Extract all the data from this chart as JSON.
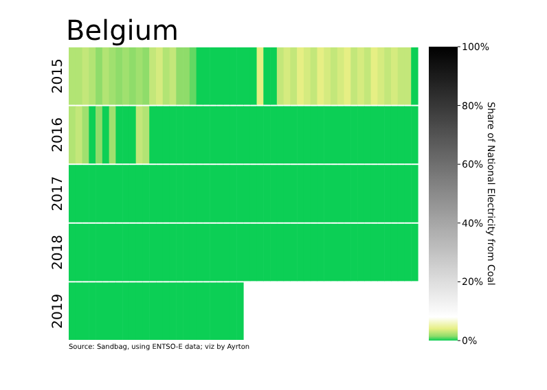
{
  "chart_data": {
    "type": "heatmap",
    "title": "Belgium",
    "categories": [
      null,
      null,
      null,
      null,
      null,
      null,
      null,
      null,
      null,
      null,
      null,
      null,
      null,
      null,
      null,
      null,
      null,
      null,
      null,
      null,
      null,
      null,
      null,
      null,
      null,
      null,
      null,
      null,
      null,
      null,
      null,
      null,
      null,
      null,
      null,
      null,
      null,
      null,
      null,
      null,
      null,
      null,
      null,
      null,
      null,
      null,
      null,
      null,
      null,
      null,
      null,
      null
    ],
    "y_categories": [
      "2015",
      "2016",
      "2017",
      "2018",
      "2019"
    ],
    "cells": [
      [
        2.5,
        2.5,
        3,
        2.5,
        1.5,
        2.5,
        2,
        1.5,
        2,
        1.5,
        2,
        1.5,
        3,
        3.5,
        2.5,
        3,
        1.5,
        1.5,
        1,
        0,
        0,
        0,
        0,
        0,
        0,
        0,
        0,
        0,
        4,
        0,
        0,
        3,
        3.5,
        3,
        4,
        3.5,
        3,
        4,
        3.5,
        3,
        3.5,
        4,
        3,
        3.5,
        3,
        4,
        3.5,
        3,
        3.5,
        3,
        3,
        0
      ],
      [
        2.5,
        3,
        2,
        0,
        1.5,
        0,
        2,
        0,
        0,
        0,
        3,
        2.5,
        0,
        0,
        0,
        0,
        0,
        0,
        0,
        0,
        0,
        0,
        0,
        0,
        0,
        0,
        0,
        0,
        0,
        0,
        0,
        0,
        0,
        0,
        0,
        0,
        0,
        0,
        0,
        0,
        0,
        0,
        0,
        0,
        0,
        0,
        0,
        0,
        0,
        0,
        0,
        0
      ],
      [
        0,
        0,
        0,
        0,
        0,
        0,
        0,
        0,
        0,
        0,
        0,
        0,
        0,
        0,
        0,
        0,
        0,
        0,
        0,
        0,
        0,
        0,
        0,
        0,
        0,
        0,
        0,
        0,
        0,
        0,
        0,
        0,
        0,
        0,
        0,
        0,
        0,
        0,
        0,
        0,
        0,
        0,
        0,
        0,
        0,
        0,
        0,
        0,
        0,
        0,
        0,
        0
      ],
      [
        0,
        0,
        0,
        0,
        0,
        0,
        0,
        0,
        0,
        0,
        0,
        0,
        0,
        0,
        0,
        0,
        0,
        0,
        0,
        0,
        0,
        0,
        0,
        0,
        0,
        0,
        0,
        0,
        0,
        0,
        0,
        0,
        0,
        0,
        0,
        0,
        0,
        0,
        0,
        0,
        0,
        0,
        0,
        0,
        0,
        0,
        0,
        0,
        0,
        0,
        0,
        0
      ],
      [
        0,
        0,
        0,
        0,
        0,
        0,
        0,
        0,
        0,
        0,
        0,
        0,
        0,
        0,
        0,
        0,
        0,
        0,
        0,
        0,
        0,
        0,
        0,
        0,
        0,
        0,
        null,
        null,
        null,
        null,
        null,
        null,
        null,
        null,
        null,
        null,
        null,
        null,
        null,
        null,
        null,
        null,
        null,
        null,
        null,
        null,
        null,
        null,
        null,
        null,
        null,
        null
      ]
    ],
    "clim": [
      0,
      100
    ],
    "cticks": [
      {
        "value": 0,
        "label": "0%"
      },
      {
        "value": 20,
        "label": "20%"
      },
      {
        "value": 40,
        "label": "40%"
      },
      {
        "value": 60,
        "label": "60%"
      },
      {
        "value": 80,
        "label": "80%"
      },
      {
        "value": 100,
        "label": "100%"
      }
    ],
    "clabel": "Share of National Electricity from Coal",
    "annotations": [
      "Source: Sandbag, using ENTSO-E data; viz by Ayrton"
    ]
  }
}
